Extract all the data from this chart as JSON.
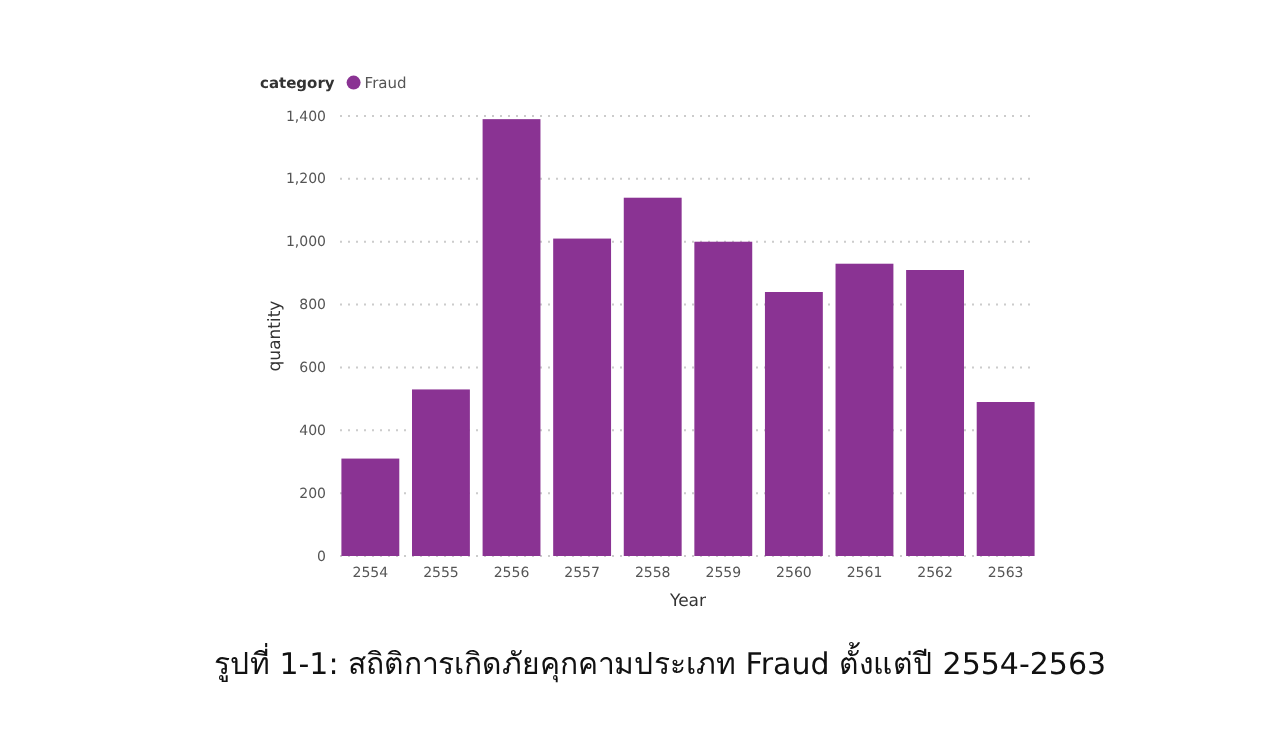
{
  "chart_data": {
    "type": "bar",
    "xlabel": "Year",
    "ylabel": "quantity",
    "legend_title": "category",
    "categories": [
      "2554",
      "2555",
      "2556",
      "2557",
      "2558",
      "2559",
      "2560",
      "2561",
      "2562",
      "2563"
    ],
    "series": [
      {
        "name": "Fraud",
        "color": "#8a3393",
        "values": [
          310,
          530,
          1390,
          1010,
          1140,
          1000,
          840,
          930,
          910,
          490
        ]
      }
    ],
    "ylim": [
      0,
      1400
    ],
    "yticks": [
      0,
      {
        "value": 200,
        "label": "200"
      },
      {
        "value": 400,
        "label": "400"
      },
      {
        "value": 600,
        "label": "600"
      },
      {
        "value": 800,
        "label": "800"
      },
      {
        "value": 1000,
        "label": "1,000"
      },
      {
        "value": 1200,
        "label": "1,200"
      },
      {
        "value": 1400,
        "label": "1,400"
      }
    ],
    "grid": "y",
    "legend": "top left",
    "annotations": [
      "รูปที่ 1-1: สถิติการเกิดภัยคุกคามประเภท Fraud ตั้งแต่ปี 2554-2563"
    ]
  }
}
